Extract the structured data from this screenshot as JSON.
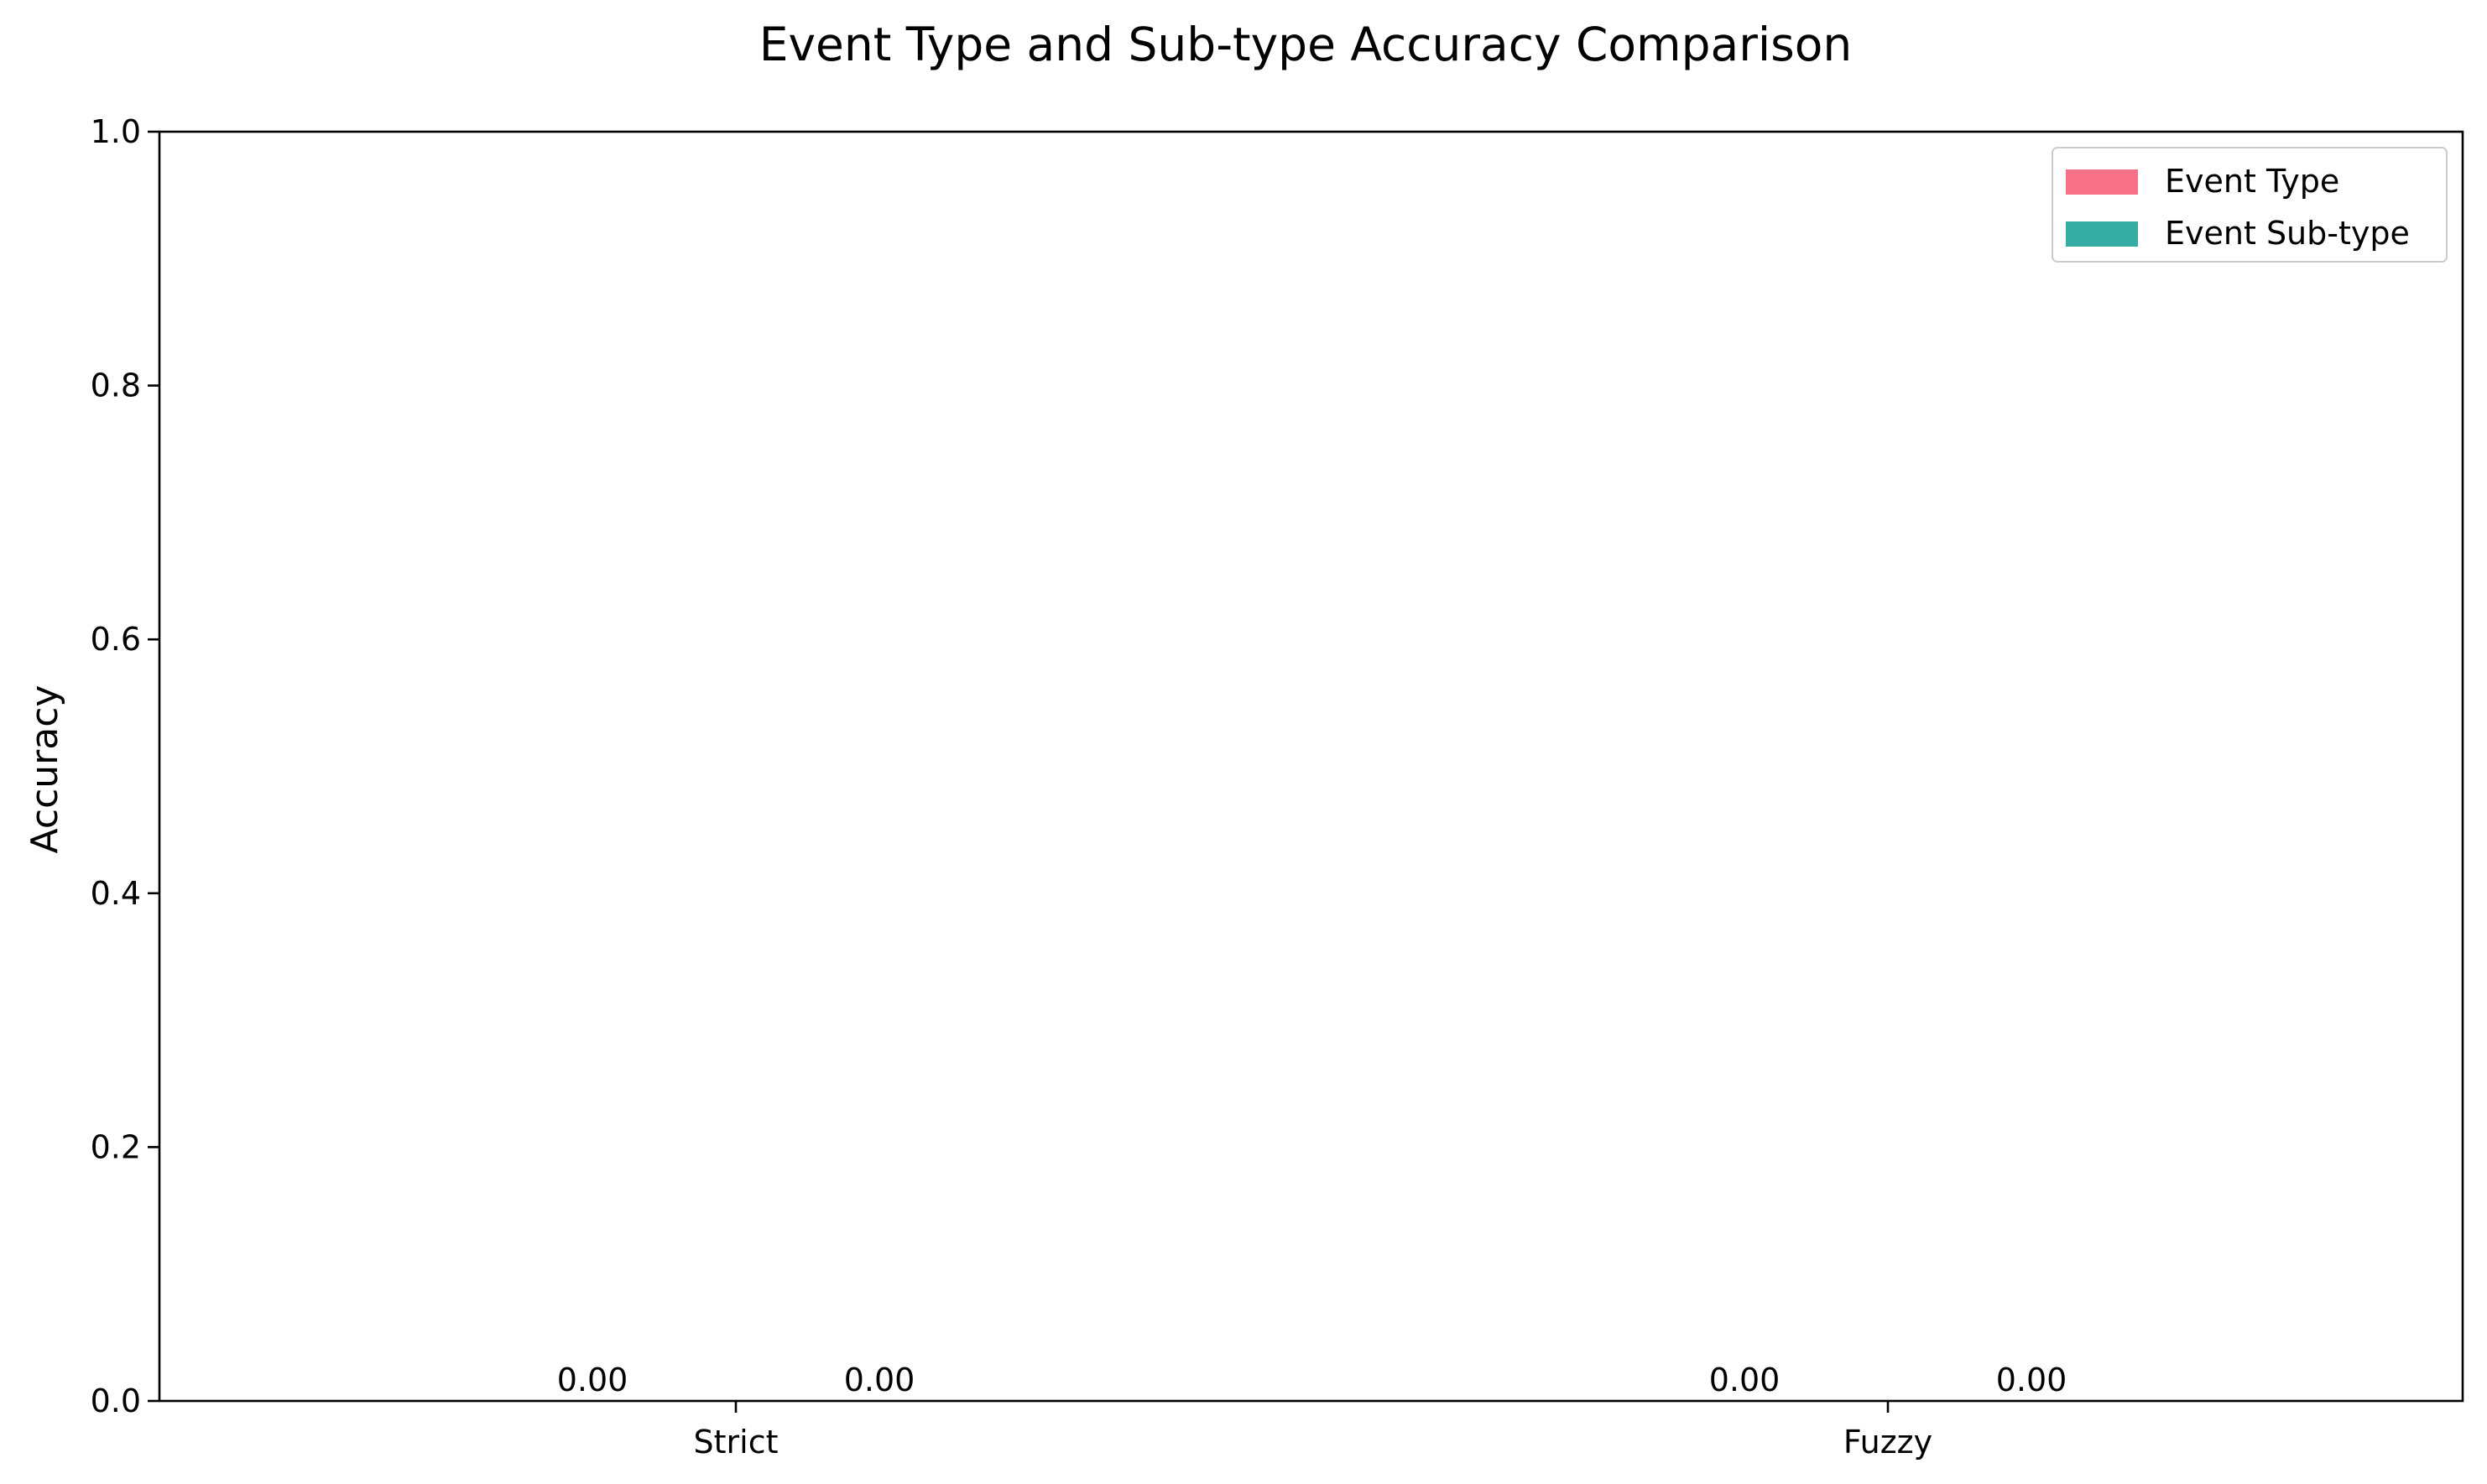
{
  "chart_data": {
    "type": "bar",
    "title": "Event Type and Sub-type Accuracy Comparison",
    "xlabel": "",
    "ylabel": "Accuracy",
    "categories": [
      "Strict",
      "Fuzzy"
    ],
    "series": [
      {
        "name": "Event Type",
        "values": [
          0.0,
          0.0
        ],
        "color": "#f77189"
      },
      {
        "name": "Event Sub-type",
        "values": [
          0.0,
          0.0
        ],
        "color": "#36ada4"
      }
    ],
    "data_labels": [
      [
        "0.00",
        "0.00"
      ],
      [
        "0.00",
        "0.00"
      ]
    ],
    "ylim": [
      0,
      1
    ],
    "yticks": [
      0.0,
      0.2,
      0.4,
      0.6,
      0.8,
      1.0
    ],
    "ytick_labels": [
      "0.0",
      "0.2",
      "0.4",
      "0.6",
      "0.8",
      "1.0"
    ],
    "grid": false,
    "legend_position": "top-right"
  }
}
